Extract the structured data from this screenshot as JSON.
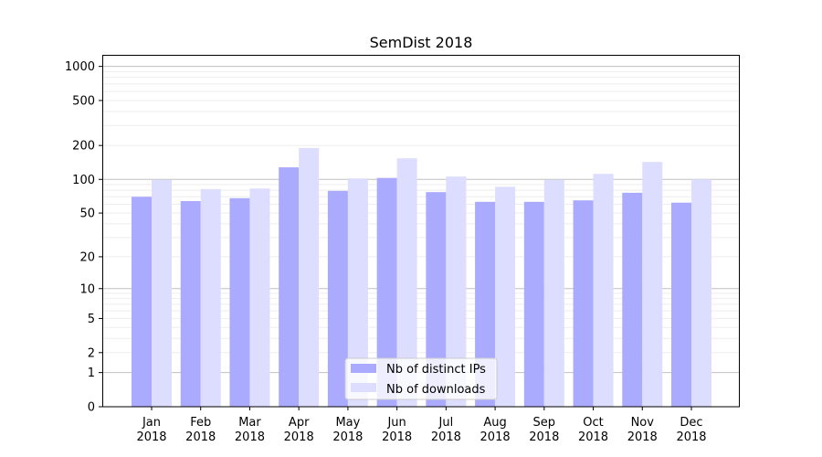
{
  "chart_data": {
    "type": "bar",
    "title": "SemDist 2018",
    "xlabel": "",
    "ylabel": "",
    "yscale": "symlog",
    "ylim": [
      0,
      1200
    ],
    "yticks": [
      0,
      1,
      2,
      5,
      10,
      20,
      50,
      100,
      200,
      500,
      1000
    ],
    "grid": true,
    "legend_placement": "lower center",
    "categories": [
      "Jan\n2018",
      "Feb\n2018",
      "Mar\n2018",
      "Apr\n2018",
      "May\n2018",
      "Jun\n2018",
      "Jul\n2018",
      "Aug\n2018",
      "Sep\n2018",
      "Oct\n2018",
      "Nov\n2018",
      "Dec\n2018"
    ],
    "series": [
      {
        "name": "Nb of distinct IPs",
        "color": "#aaaaff",
        "values": [
          70,
          64,
          68,
          128,
          79,
          103,
          77,
          63,
          63,
          65,
          76,
          62
        ]
      },
      {
        "name": "Nb of downloads",
        "color": "#ddddff",
        "values": [
          99,
          82,
          83,
          190,
          102,
          154,
          106,
          86,
          99,
          112,
          143,
          100
        ]
      }
    ]
  }
}
